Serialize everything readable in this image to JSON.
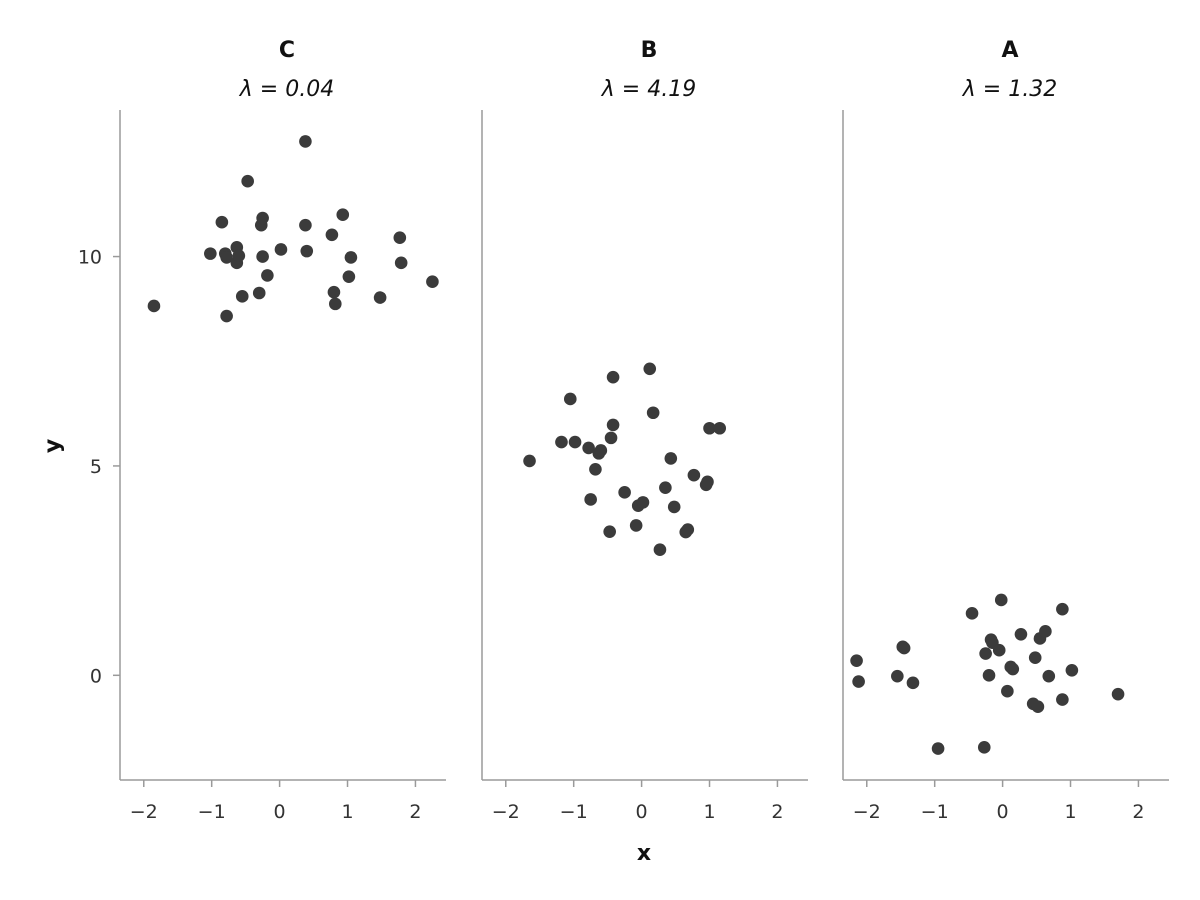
{
  "chart_data": {
    "type": "scatter",
    "xlabel": "x",
    "ylabel": "y",
    "xlim": [
      -2.35,
      2.45
    ],
    "ylim": [
      -2.5,
      13.5
    ],
    "xticks": [
      -2,
      -1,
      0,
      1,
      2
    ],
    "xtick_labels": [
      "−2",
      "−1",
      "0",
      "1",
      "2"
    ],
    "yticks": [
      0,
      5,
      10
    ],
    "ytick_labels": [
      "0",
      "5",
      "10"
    ],
    "point_color": "#3b3b3b",
    "axis_color": "#9a9a9a",
    "grid": false,
    "legend": "none",
    "panels": [
      {
        "title": "C",
        "subtitle": "λ = 0.04",
        "points": [
          [
            -1.85,
            8.82
          ],
          [
            -1.02,
            10.07
          ],
          [
            -0.85,
            10.82
          ],
          [
            -0.8,
            10.07
          ],
          [
            -0.78,
            9.98
          ],
          [
            -0.78,
            8.58
          ],
          [
            -0.63,
            10.22
          ],
          [
            -0.63,
            9.85
          ],
          [
            -0.6,
            10.02
          ],
          [
            -0.55,
            9.05
          ],
          [
            -0.47,
            11.8
          ],
          [
            -0.3,
            9.13
          ],
          [
            -0.27,
            10.75
          ],
          [
            -0.25,
            10.92
          ],
          [
            -0.25,
            10.0
          ],
          [
            -0.18,
            9.55
          ],
          [
            0.02,
            10.17
          ],
          [
            0.38,
            12.75
          ],
          [
            0.38,
            10.75
          ],
          [
            0.4,
            10.13
          ],
          [
            0.77,
            10.52
          ],
          [
            0.8,
            9.15
          ],
          [
            0.82,
            8.87
          ],
          [
            0.93,
            11.0
          ],
          [
            1.02,
            9.52
          ],
          [
            1.05,
            9.98
          ],
          [
            1.48,
            9.02
          ],
          [
            1.77,
            10.45
          ],
          [
            1.79,
            9.85
          ],
          [
            2.25,
            9.4
          ]
        ]
      },
      {
        "title": "B",
        "subtitle": "λ = 4.19",
        "points": [
          [
            -1.65,
            5.12
          ],
          [
            -1.05,
            6.6
          ],
          [
            -1.18,
            5.57
          ],
          [
            -0.98,
            5.57
          ],
          [
            -0.78,
            5.43
          ],
          [
            -0.75,
            4.2
          ],
          [
            -0.68,
            4.92
          ],
          [
            -0.63,
            5.3
          ],
          [
            -0.6,
            5.37
          ],
          [
            -0.45,
            5.67
          ],
          [
            -0.42,
            7.12
          ],
          [
            -0.42,
            5.98
          ],
          [
            -0.47,
            3.43
          ],
          [
            -0.25,
            4.37
          ],
          [
            -0.08,
            3.58
          ],
          [
            -0.05,
            4.05
          ],
          [
            0.02,
            4.13
          ],
          [
            0.12,
            7.32
          ],
          [
            0.17,
            6.27
          ],
          [
            0.27,
            3.0
          ],
          [
            0.35,
            4.48
          ],
          [
            0.43,
            5.18
          ],
          [
            0.48,
            4.02
          ],
          [
            0.65,
            3.42
          ],
          [
            0.68,
            3.48
          ],
          [
            0.77,
            4.78
          ],
          [
            0.95,
            4.55
          ],
          [
            0.97,
            4.62
          ],
          [
            1.0,
            5.9
          ],
          [
            1.15,
            5.9
          ]
        ]
      },
      {
        "title": "A",
        "subtitle": "λ = 1.32",
        "points": [
          [
            -2.15,
            0.35
          ],
          [
            -2.12,
            -0.15
          ],
          [
            -1.55,
            -0.02
          ],
          [
            -1.47,
            0.68
          ],
          [
            -1.45,
            0.65
          ],
          [
            -1.32,
            -0.18
          ],
          [
            -0.95,
            -1.75
          ],
          [
            -0.45,
            1.48
          ],
          [
            -0.27,
            -1.72
          ],
          [
            -0.25,
            0.52
          ],
          [
            -0.2,
            0.0
          ],
          [
            -0.17,
            0.85
          ],
          [
            -0.15,
            0.78
          ],
          [
            -0.05,
            0.6
          ],
          [
            -0.02,
            1.8
          ],
          [
            0.07,
            -0.38
          ],
          [
            0.12,
            0.2
          ],
          [
            0.15,
            0.15
          ],
          [
            0.27,
            0.98
          ],
          [
            0.45,
            -0.68
          ],
          [
            0.48,
            0.42
          ],
          [
            0.52,
            -0.75
          ],
          [
            0.55,
            0.88
          ],
          [
            0.63,
            1.05
          ],
          [
            0.68,
            -0.02
          ],
          [
            0.88,
            1.58
          ],
          [
            0.88,
            -0.58
          ],
          [
            1.02,
            0.12
          ],
          [
            1.7,
            -0.45
          ]
        ]
      }
    ]
  }
}
